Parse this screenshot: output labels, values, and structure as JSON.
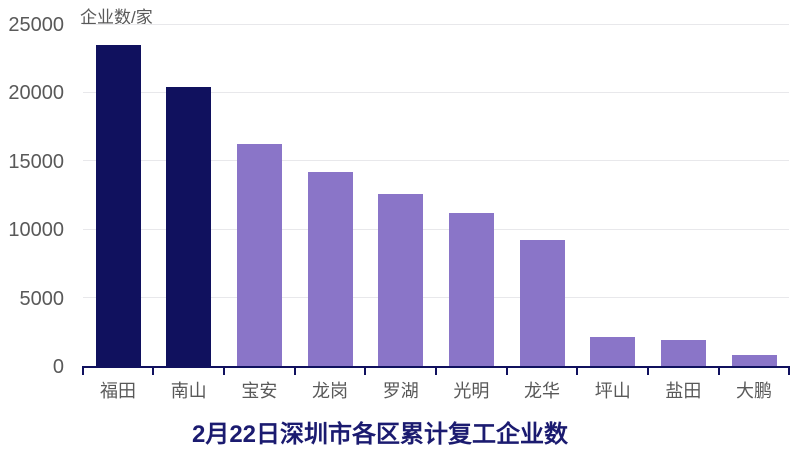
{
  "chart_data": {
    "type": "bar",
    "title": "2月22日深圳市各区累计复工企业数",
    "ylabel": "企业数/家",
    "xlabel": "",
    "categories": [
      "福田",
      "南山",
      "宝安",
      "龙岗",
      "罗湖",
      "光明",
      "龙华",
      "坪山",
      "盐田",
      "大鹏"
    ],
    "values": [
      23500,
      20400,
      16200,
      14200,
      12600,
      11200,
      9200,
      2100,
      1900,
      800
    ],
    "yticks": [
      0,
      5000,
      10000,
      15000,
      20000,
      25000
    ],
    "ylim": [
      0,
      25000
    ],
    "grid": true,
    "legend": "none",
    "bar_colors": [
      "#10115e",
      "#10115e",
      "#8a75c8",
      "#8a75c8",
      "#8a75c8",
      "#8a75c8",
      "#8a75c8",
      "#8a75c8",
      "#8a75c8",
      "#8a75c8"
    ]
  },
  "colors": {
    "bar_navy": "#10115e",
    "bar_purple": "#8a75c8",
    "title_text": "#1b1b70",
    "axis_text": "#595959",
    "gridline": "#e8e8eb",
    "axis_line": "#10115e",
    "background": "#ffffff"
  }
}
